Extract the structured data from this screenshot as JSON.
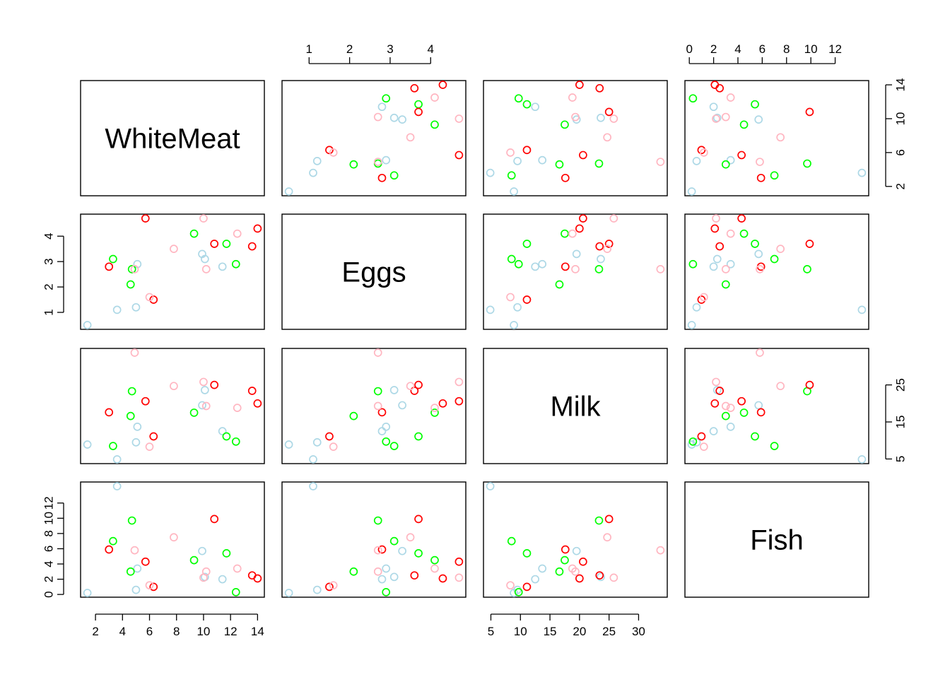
{
  "chart_data": {
    "type": "scatter",
    "subtype": "pairs-matrix",
    "variables": [
      "WhiteMeat",
      "Eggs",
      "Milk",
      "Fish"
    ],
    "colors": [
      "#add8e6",
      "#00ff00",
      "#ff0000",
      "#ffb6c1"
    ],
    "ranges": {
      "WhiteMeat": [
        1.4,
        14.0
      ],
      "Eggs": [
        0.5,
        4.7
      ],
      "Milk": [
        4.9,
        33.7
      ],
      "Fish": [
        0.2,
        14.2
      ]
    },
    "ticks": {
      "WhiteMeat": [
        2,
        4,
        6,
        8,
        10,
        12,
        14
      ],
      "Eggs": [
        1,
        2,
        3,
        4
      ],
      "Milk": [
        5,
        10,
        15,
        20,
        25,
        30
      ],
      "Fish": [
        0,
        2,
        4,
        6,
        8,
        10,
        12
      ]
    },
    "axis_sides": {
      "top": {
        "Eggs": [
          1,
          2,
          3,
          4
        ],
        "Fish": [
          0,
          2,
          4,
          6,
          8,
          10,
          12
        ]
      },
      "bottom": {
        "WhiteMeat": [
          2,
          4,
          6,
          8,
          10,
          12,
          14
        ],
        "Milk": [
          5,
          10,
          15,
          20,
          25,
          30
        ]
      },
      "left": {
        "Eggs": [
          1,
          2,
          3,
          4
        ],
        "Fish": [
          0,
          2,
          4,
          6,
          8,
          10,
          12
        ]
      },
      "right": {
        "WhiteMeat": [
          2,
          6,
          10,
          14
        ],
        "Milk": [
          5,
          15,
          25
        ]
      }
    },
    "points": [
      {
        "WhiteMeat": 1.4,
        "Eggs": 0.5,
        "Milk": 8.9,
        "Fish": 0.2,
        "group": 1
      },
      {
        "WhiteMeat": 3.6,
        "Eggs": 1.1,
        "Milk": 4.9,
        "Fish": 14.2,
        "group": 1
      },
      {
        "WhiteMeat": 5.0,
        "Eggs": 1.2,
        "Milk": 9.5,
        "Fish": 0.6,
        "group": 1
      },
      {
        "WhiteMeat": 5.1,
        "Eggs": 2.9,
        "Milk": 13.7,
        "Fish": 3.4,
        "group": 1
      },
      {
        "WhiteMeat": 9.9,
        "Eggs": 3.3,
        "Milk": 19.5,
        "Fish": 5.7,
        "group": 1
      },
      {
        "WhiteMeat": 10.1,
        "Eggs": 3.1,
        "Milk": 23.6,
        "Fish": 2.3,
        "group": 1
      },
      {
        "WhiteMeat": 11.4,
        "Eggs": 2.8,
        "Milk": 12.5,
        "Fish": 2.0,
        "group": 1
      },
      {
        "WhiteMeat": 3.3,
        "Eggs": 3.1,
        "Milk": 8.5,
        "Fish": 7.0,
        "group": 2
      },
      {
        "WhiteMeat": 4.6,
        "Eggs": 2.1,
        "Milk": 16.6,
        "Fish": 3.0,
        "group": 2
      },
      {
        "WhiteMeat": 4.7,
        "Eggs": 2.7,
        "Milk": 23.3,
        "Fish": 9.7,
        "group": 2
      },
      {
        "WhiteMeat": 9.3,
        "Eggs": 4.1,
        "Milk": 17.5,
        "Fish": 4.5,
        "group": 2
      },
      {
        "WhiteMeat": 11.7,
        "Eggs": 3.7,
        "Milk": 11.1,
        "Fish": 5.4,
        "group": 2
      },
      {
        "WhiteMeat": 12.4,
        "Eggs": 2.9,
        "Milk": 9.7,
        "Fish": 0.3,
        "group": 2
      },
      {
        "WhiteMeat": 3.0,
        "Eggs": 2.8,
        "Milk": 17.6,
        "Fish": 5.9,
        "group": 3
      },
      {
        "WhiteMeat": 5.7,
        "Eggs": 4.7,
        "Milk": 20.6,
        "Fish": 4.3,
        "group": 3
      },
      {
        "WhiteMeat": 6.3,
        "Eggs": 1.5,
        "Milk": 11.1,
        "Fish": 1.0,
        "group": 3
      },
      {
        "WhiteMeat": 10.8,
        "Eggs": 3.7,
        "Milk": 25.0,
        "Fish": 9.9,
        "group": 3
      },
      {
        "WhiteMeat": 13.6,
        "Eggs": 3.6,
        "Milk": 23.4,
        "Fish": 2.5,
        "group": 3
      },
      {
        "WhiteMeat": 14.0,
        "Eggs": 4.3,
        "Milk": 20.0,
        "Fish": 2.1,
        "group": 3
      },
      {
        "WhiteMeat": 4.9,
        "Eggs": 2.7,
        "Milk": 33.7,
        "Fish": 5.8,
        "group": 4
      },
      {
        "WhiteMeat": 6.0,
        "Eggs": 1.6,
        "Milk": 8.3,
        "Fish": 1.2,
        "group": 4
      },
      {
        "WhiteMeat": 7.8,
        "Eggs": 3.5,
        "Milk": 24.7,
        "Fish": 7.5,
        "group": 4
      },
      {
        "WhiteMeat": 10.0,
        "Eggs": 4.7,
        "Milk": 25.8,
        "Fish": 2.2,
        "group": 4
      },
      {
        "WhiteMeat": 10.2,
        "Eggs": 2.7,
        "Milk": 19.3,
        "Fish": 3.0,
        "group": 4
      },
      {
        "WhiteMeat": 12.5,
        "Eggs": 4.1,
        "Milk": 18.8,
        "Fish": 3.4,
        "group": 4
      }
    ]
  }
}
